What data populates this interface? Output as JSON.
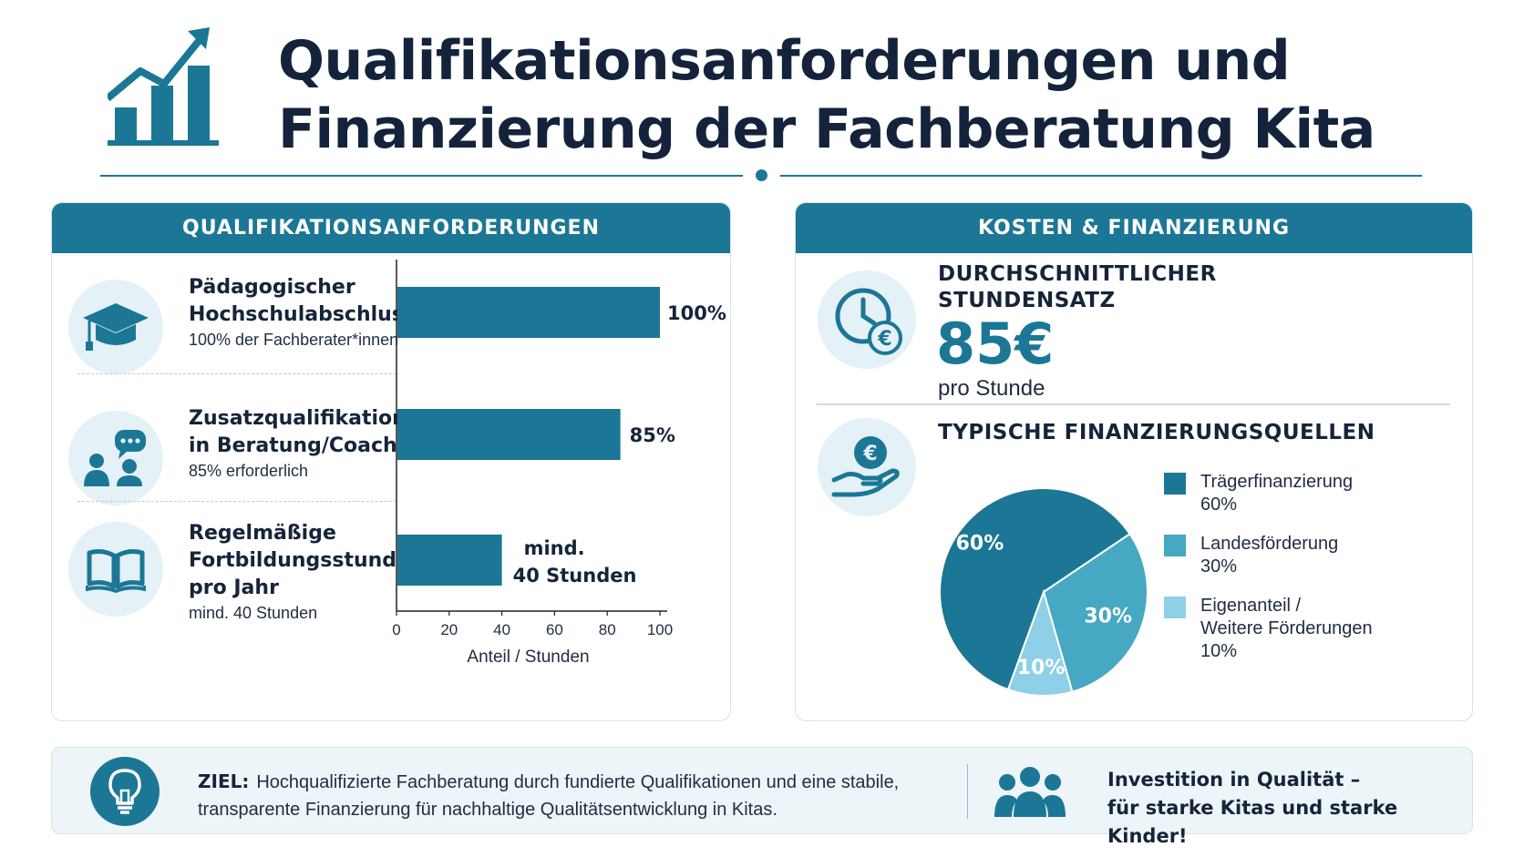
{
  "header": {
    "title_line1": "Qualifikationsanforderungen und",
    "title_line2": "Finanzierung der Fachberatung Kita"
  },
  "qualification_panel": {
    "heading": "Qualifikationsanforderungen",
    "items": [
      {
        "title_lines": [
          "Pädagogischer",
          "Hochschulabschluss"
        ],
        "subtitle": "100% der Fachberater*innen",
        "icon": "graduation-cap-icon"
      },
      {
        "title_lines": [
          "Zusatzqualifikation",
          "in Beratung/Coaching"
        ],
        "subtitle": "85% erforderlich",
        "icon": "coaching-people-icon"
      },
      {
        "title_lines": [
          "Regelmäßige",
          "Fortbildungsstunden",
          "pro Jahr"
        ],
        "subtitle": "mind. 40 Stunden",
        "icon": "open-book-icon"
      }
    ]
  },
  "cost_panel": {
    "heading": "Kosten & Finanzierung",
    "rate_label_lines": [
      "DURCHSCHNITTLICHER",
      "STUNDENSATZ"
    ],
    "rate_value": "85€",
    "rate_unit": "pro Stunde",
    "sources_label": "TYPISCHE FINANZIERUNGSQUELLEN",
    "clock_icon": "clock-euro-icon",
    "hand_icon": "hand-euro-icon"
  },
  "chart_data": [
    {
      "type": "bar",
      "orientation": "horizontal",
      "categories": [
        "Pädagogischer Hochschulabschluss",
        "Zusatzqualifikation in Beratung/Coaching",
        "Regelmäßige Fortbildungsstunden pro Jahr"
      ],
      "values": [
        100,
        85,
        40
      ],
      "data_labels": [
        "100%",
        "85%",
        "mind. 40 Stunden"
      ],
      "xlabel": "Anteil / Stunden",
      "xlim": [
        0,
        100
      ],
      "xticks": [
        "0",
        "20",
        "40",
        "60",
        "80",
        "100"
      ],
      "color": "#1b7795"
    },
    {
      "type": "pie",
      "labels": [
        "Trägerfinanzierung",
        "Landesförderung",
        "Eigenanteil / Weitere Förderungen"
      ],
      "values": [
        60,
        30,
        10
      ],
      "value_labels": [
        "60%",
        "30%",
        "10%"
      ],
      "colors": [
        "#1b7795",
        "#46a8c3",
        "#8fcfe8"
      ],
      "legend_lines": [
        [
          "Trägerfinanzierung"
        ],
        [
          "Landesförderung"
        ],
        [
          "Eigenanteil /",
          "Weitere Förderungen"
        ]
      ],
      "legend_values": [
        "60%",
        "30%",
        "10%"
      ]
    }
  ],
  "footer": {
    "goal_label": "ZIEL:",
    "goal_text": "Hochqualifizierte Fachberatung durch fundierte Qualifikationen und eine stabile, transparente Finanzierung für nachhaltige Qualitätsentwicklung in Kitas.",
    "claim_line1": "Investition in Qualität –",
    "claim_line2": "für starke Kitas und starke Kinder!",
    "bulb_icon": "lightbulb-icon",
    "team_icon": "team-icon"
  },
  "colors": {
    "primary": "#1b7795",
    "title": "#14233b",
    "icon_bg": "#e4f1f6",
    "footer_bg": "#eef5f9"
  }
}
